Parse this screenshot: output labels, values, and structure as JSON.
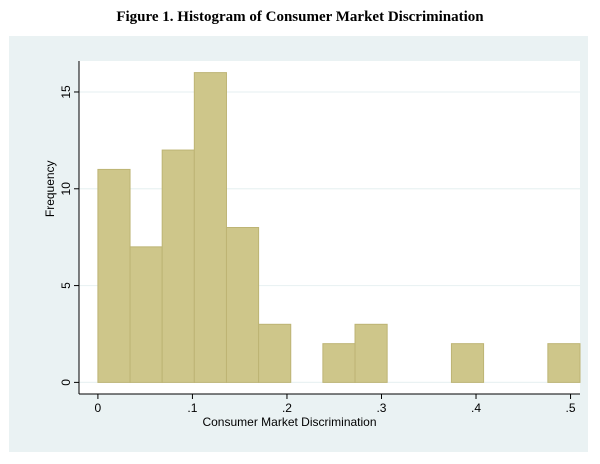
{
  "figure": {
    "title": "Figure 1. Histogram of Consumer Market Discrimination"
  },
  "colors": {
    "panel_background": "#EAF2F3",
    "plot_background": "#FFFFFF",
    "bar_fill": "#CEC68A",
    "bar_stroke": "#BDB474",
    "gridline": "#EAF2F3",
    "axis": "#000000"
  },
  "chart_data": {
    "type": "bar",
    "xlabel": "Consumer Market Discrimination",
    "ylabel": "Frequency",
    "xlim": [
      -0.02,
      0.51
    ],
    "ylim": [
      -0.6,
      16.6
    ],
    "xticks": [
      0,
      0.1,
      0.2,
      0.3,
      0.4,
      0.5
    ],
    "xtick_labels": [
      "0",
      ".1",
      ".2",
      ".3",
      ".4",
      ".5"
    ],
    "yticks": [
      0,
      5,
      10,
      15
    ],
    "ytick_labels": [
      "0",
      "5",
      "10",
      "15"
    ],
    "grid": true,
    "bin_width": 0.034,
    "bins": [
      {
        "start": 0.0,
        "end": 0.034,
        "count": 11
      },
      {
        "start": 0.034,
        "end": 0.068,
        "count": 7
      },
      {
        "start": 0.068,
        "end": 0.102,
        "count": 12
      },
      {
        "start": 0.102,
        "end": 0.136,
        "count": 16
      },
      {
        "start": 0.136,
        "end": 0.17,
        "count": 8
      },
      {
        "start": 0.17,
        "end": 0.204,
        "count": 3
      },
      {
        "start": 0.238,
        "end": 0.272,
        "count": 2
      },
      {
        "start": 0.272,
        "end": 0.306,
        "count": 3
      },
      {
        "start": 0.374,
        "end": 0.408,
        "count": 2
      },
      {
        "start": 0.476,
        "end": 0.51,
        "count": 2
      }
    ]
  }
}
